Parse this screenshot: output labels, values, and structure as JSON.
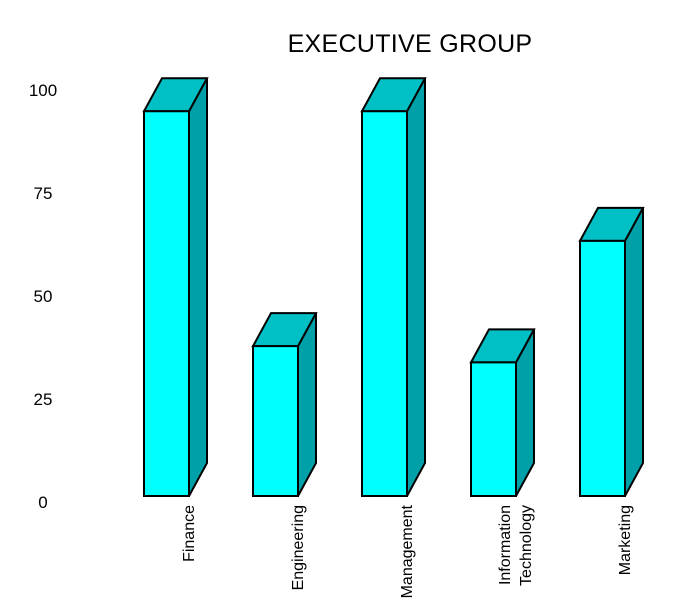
{
  "chart_data": {
    "type": "bar",
    "style": "3d-block-bars",
    "title": "EXECUTIVE GROUP",
    "categories": [
      "Finance",
      "Engineering",
      "Management",
      "Information Technology",
      "Marketing"
    ],
    "values": [
      95,
      37,
      95,
      33,
      63
    ],
    "yticks": [
      0,
      25,
      50,
      75,
      100
    ],
    "ylim": [
      0,
      100
    ],
    "xlabel": "",
    "ylabel": "",
    "grid": false,
    "legend": false,
    "axis_lines": false,
    "colors": {
      "bar_front": "#00ffff",
      "bar_top": "#00c0c6",
      "bar_side": "#00a0a8",
      "outline": "#000000",
      "text": "#000000",
      "background": "#ffffff"
    }
  }
}
